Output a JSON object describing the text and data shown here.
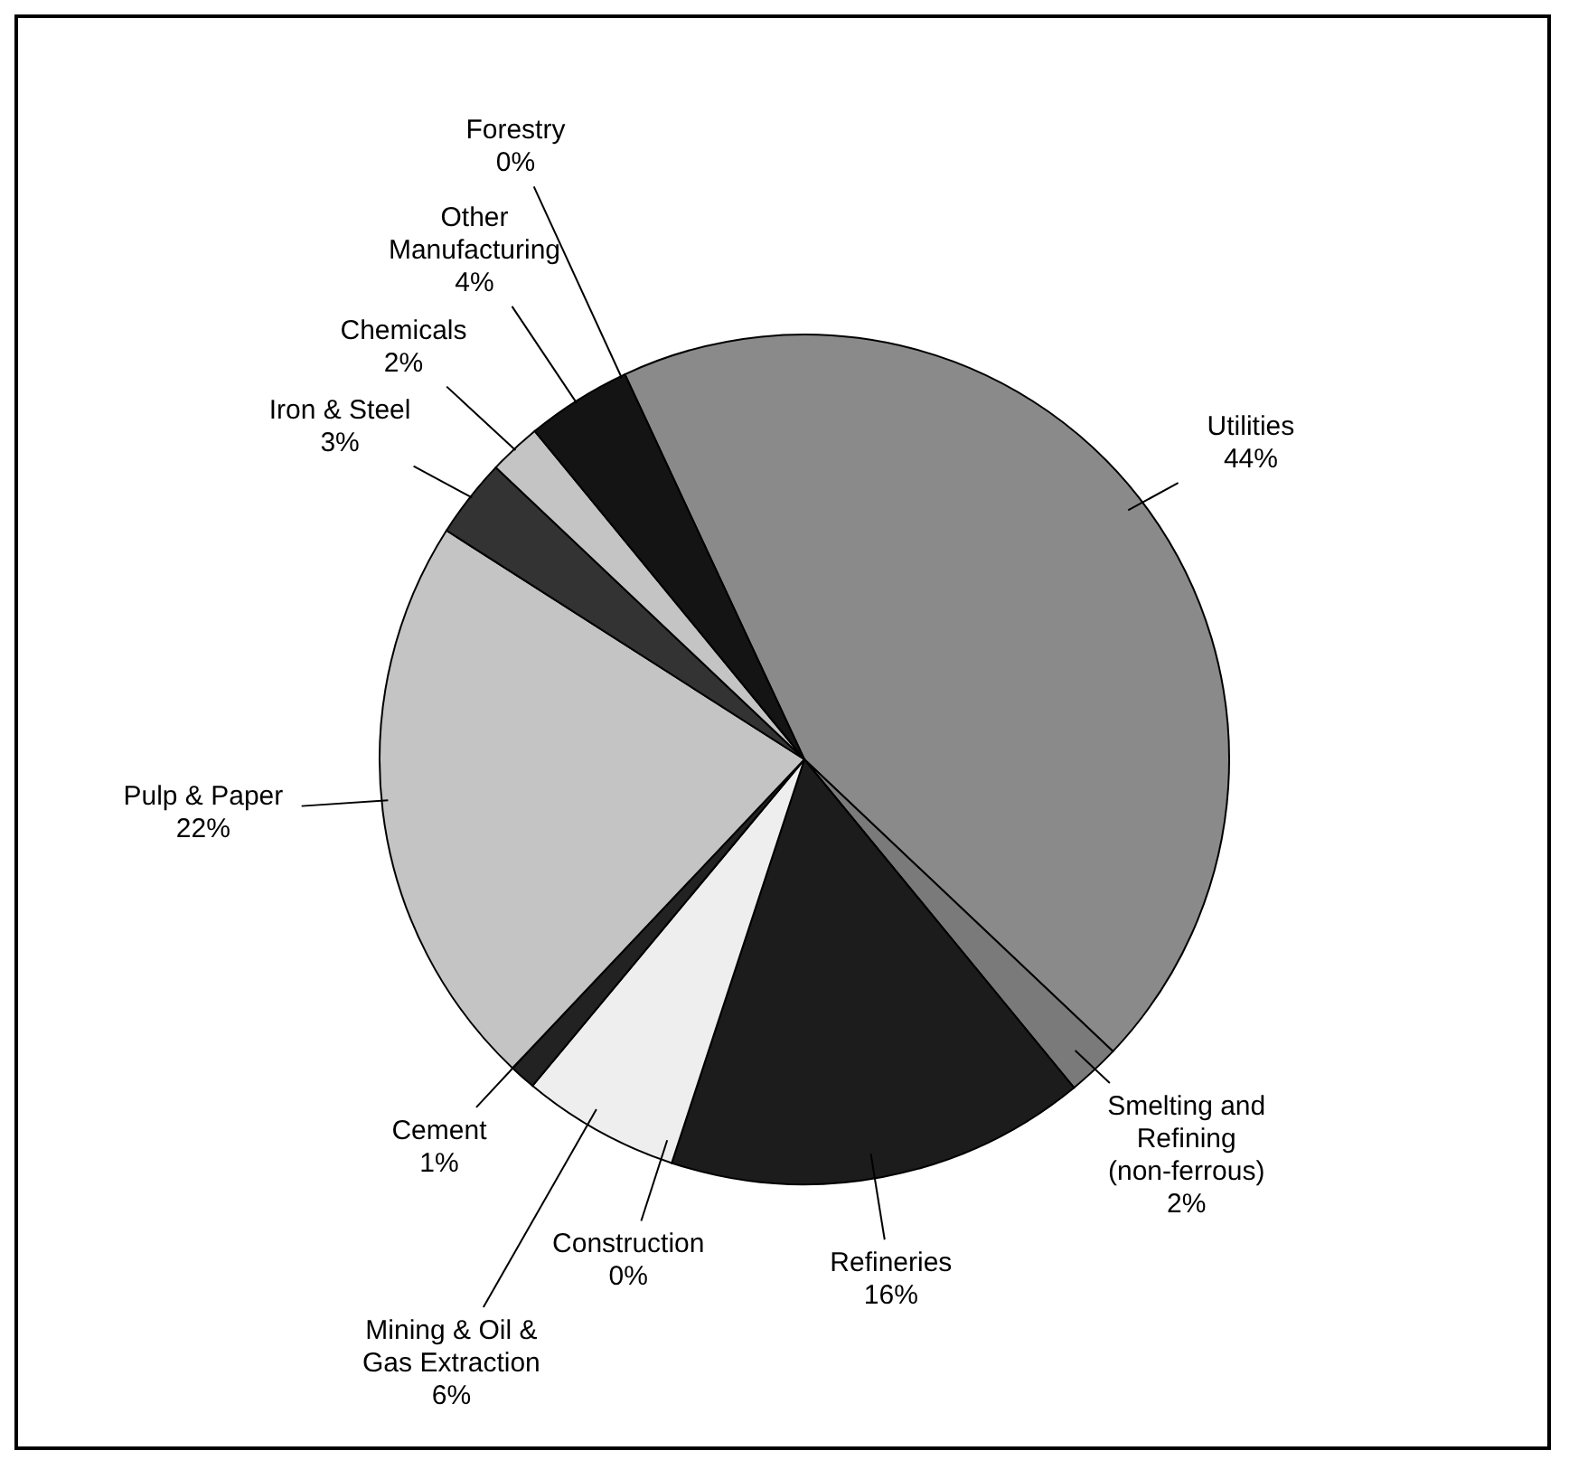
{
  "chart_data": {
    "type": "pie",
    "categories": [
      "Utilities",
      "Smelting and Refining (non-ferrous)",
      "Refineries",
      "Construction",
      "Mining & Oil & Gas Extraction",
      "Cement",
      "Pulp & Paper",
      "Iron & Steel",
      "Chemicals",
      "Other Manufacturing",
      "Forestry"
    ],
    "values": [
      44,
      2,
      16,
      0,
      6,
      1,
      22,
      3,
      2,
      4,
      0
    ],
    "colors": [
      "#8a8a8a",
      "#7a7a7a",
      "#1c1c1c",
      "#111111",
      "#eeeeee",
      "#222222",
      "#c4c4c4",
      "#333333",
      "#c4c4c4",
      "#141414",
      "#ffffff"
    ],
    "value_labels": [
      "44%",
      "2%",
      "16%",
      "0%",
      "6%",
      "1%",
      "22%",
      "3%",
      "2%",
      "4%",
      "0%"
    ]
  }
}
